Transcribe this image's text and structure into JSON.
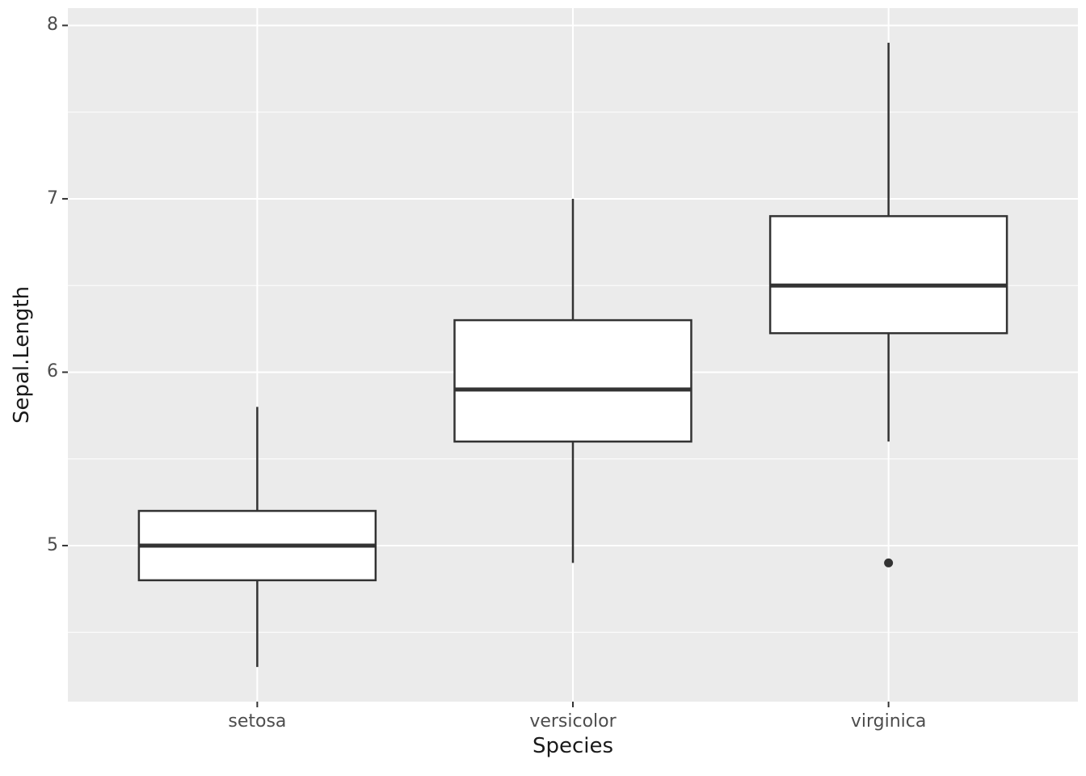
{
  "chart_data": {
    "type": "boxplot",
    "title": "",
    "xlabel": "Species",
    "ylabel": "Sepal.Length",
    "categories": [
      "setosa",
      "versicolor",
      "virginica"
    ],
    "series": [
      {
        "category": "setosa",
        "whisker_low": 4.3,
        "q1": 4.8,
        "median": 5.0,
        "q3": 5.2,
        "whisker_high": 5.8,
        "outliers": []
      },
      {
        "category": "versicolor",
        "whisker_low": 4.9,
        "q1": 5.6,
        "median": 5.9,
        "q3": 6.3,
        "whisker_high": 7.0,
        "outliers": []
      },
      {
        "category": "virginica",
        "whisker_low": 5.6,
        "q1": 6.225,
        "median": 6.5,
        "q3": 6.9,
        "whisker_high": 7.9,
        "outliers": [
          4.9
        ]
      }
    ],
    "y_ticks": [
      5,
      6,
      7,
      8
    ],
    "y_minor_ticks": [
      4.5,
      5.5,
      6.5,
      7.5
    ],
    "ylim": [
      4.1,
      8.1
    ],
    "grid": true,
    "legend": "none",
    "panel_background": "#EBEBEB",
    "grid_color": "#FFFFFF",
    "box_fill": "#FFFFFF",
    "box_stroke": "#333333",
    "outlier_color": "#333333",
    "tick_color": "#333333"
  }
}
